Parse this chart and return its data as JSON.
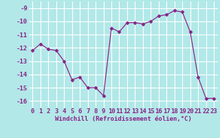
{
  "x": [
    0,
    1,
    2,
    3,
    4,
    5,
    6,
    7,
    8,
    9,
    10,
    11,
    12,
    13,
    14,
    15,
    16,
    17,
    18,
    19,
    20,
    21,
    22,
    23
  ],
  "y": [
    -12.2,
    -11.7,
    -12.1,
    -12.2,
    -13.0,
    -14.4,
    -14.2,
    -15.0,
    -15.0,
    -15.6,
    -10.5,
    -10.8,
    -10.1,
    -10.1,
    -10.2,
    -10.0,
    -9.6,
    -9.5,
    -9.2,
    -9.3,
    -10.8,
    -14.2,
    -15.8,
    -15.8
  ],
  "line_color": "#882288",
  "marker": "D",
  "marker_size": 2.5,
  "bg_color": "#b2e8e8",
  "grid_color": "#ffffff",
  "xlabel": "Windchill (Refroidissement éolien,°C)",
  "xlabel_fontsize": 6.5,
  "tick_fontsize": 6.5,
  "ylim": [
    -16.5,
    -8.5
  ],
  "yticks": [
    -16,
    -15,
    -14,
    -13,
    -12,
    -11,
    -10,
    -9
  ],
  "xticks": [
    0,
    1,
    2,
    3,
    4,
    5,
    6,
    7,
    8,
    9,
    10,
    11,
    12,
    13,
    14,
    15,
    16,
    17,
    18,
    19,
    20,
    21,
    22,
    23
  ],
  "xlim": [
    -0.5,
    23.5
  ]
}
